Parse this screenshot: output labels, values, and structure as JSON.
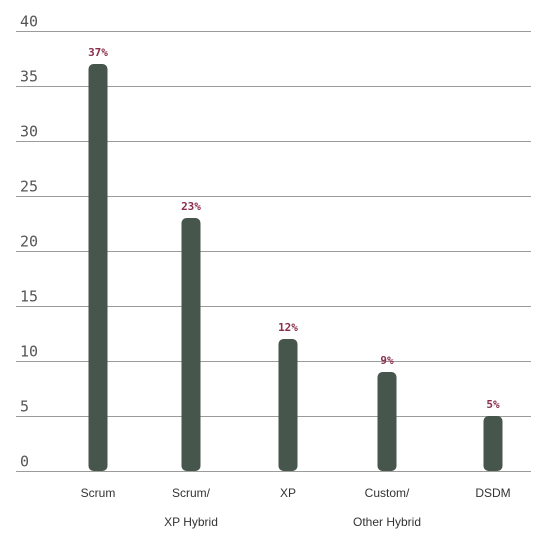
{
  "colors": {
    "bar": "#46564d",
    "data_label": "#8a2e4a",
    "gridline": "#9b9b9b",
    "axis_text": "#555555"
  },
  "chart_data": {
    "type": "bar",
    "categories": [
      [
        "Scrum"
      ],
      [
        "Scrum/",
        "XP Hybrid"
      ],
      [
        "XP"
      ],
      [
        "Custom/",
        "Other Hybrid"
      ],
      [
        "DSDM"
      ]
    ],
    "values": [
      37,
      23,
      12,
      9,
      5
    ],
    "data_labels": [
      "37%",
      "23%",
      "12%",
      "9%",
      "5%"
    ],
    "ylim": [
      0,
      40
    ],
    "yticks": [
      0,
      5,
      10,
      15,
      20,
      25,
      30,
      35,
      40
    ],
    "ytick_labels": [
      "0",
      "5",
      "10",
      "15",
      "20",
      "25",
      "30",
      "35",
      "40"
    ],
    "grid": true,
    "legend": "none",
    "title": "",
    "xlabel": "",
    "ylabel": ""
  }
}
